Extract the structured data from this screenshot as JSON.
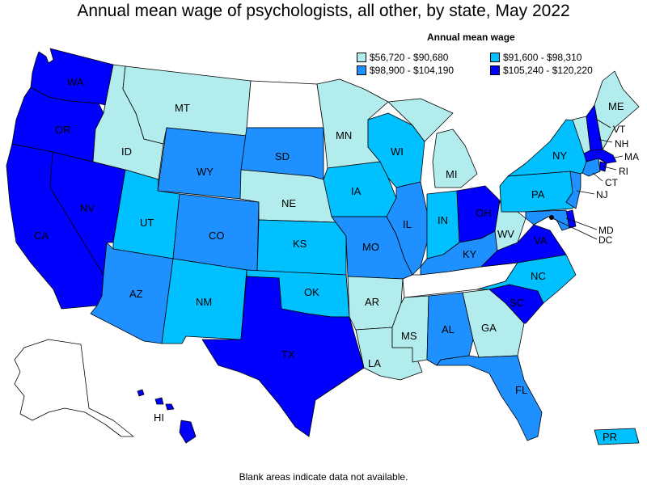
{
  "title": "Annual mean wage of psychologists, all other, by state, May 2022",
  "legend": {
    "title": "Annual mean wage",
    "items": [
      {
        "label": "$56,720 - $90,680",
        "color": "#b3ecec"
      },
      {
        "label": "$91,600 - $98,310",
        "color": "#00c0ff"
      },
      {
        "label": "$98,900 - $104,190",
        "color": "#1e90ff"
      },
      {
        "label": "$105,240 - $120,220",
        "color": "#0000ff"
      }
    ]
  },
  "footnote": "Blank areas indicate data not available.",
  "colors": {
    "no_data": "#ffffff",
    "tier1": "#b3ecec",
    "tier2": "#00c0ff",
    "tier3": "#1e90ff",
    "tier4": "#0000ff"
  },
  "states": [
    {
      "abbr": "WA",
      "tier": 4
    },
    {
      "abbr": "OR",
      "tier": 4
    },
    {
      "abbr": "CA",
      "tier": 4
    },
    {
      "abbr": "NV",
      "tier": 4
    },
    {
      "abbr": "ID",
      "tier": 1
    },
    {
      "abbr": "MT",
      "tier": 1
    },
    {
      "abbr": "WY",
      "tier": 3
    },
    {
      "abbr": "UT",
      "tier": 2
    },
    {
      "abbr": "AZ",
      "tier": 3
    },
    {
      "abbr": "CO",
      "tier": 3
    },
    {
      "abbr": "NM",
      "tier": 2
    },
    {
      "abbr": "ND",
      "tier": 0
    },
    {
      "abbr": "SD",
      "tier": 3
    },
    {
      "abbr": "NE",
      "tier": 1
    },
    {
      "abbr": "KS",
      "tier": 2
    },
    {
      "abbr": "OK",
      "tier": 2
    },
    {
      "abbr": "TX",
      "tier": 4
    },
    {
      "abbr": "MN",
      "tier": 1
    },
    {
      "abbr": "IA",
      "tier": 2
    },
    {
      "abbr": "MO",
      "tier": 3
    },
    {
      "abbr": "AR",
      "tier": 1
    },
    {
      "abbr": "LA",
      "tier": 1
    },
    {
      "abbr": "WI",
      "tier": 2
    },
    {
      "abbr": "IL",
      "tier": 3
    },
    {
      "abbr": "MI",
      "tier": 1
    },
    {
      "abbr": "IN",
      "tier": 2
    },
    {
      "abbr": "OH",
      "tier": 4
    },
    {
      "abbr": "KY",
      "tier": 3
    },
    {
      "abbr": "TN",
      "tier": 0
    },
    {
      "abbr": "MS",
      "tier": 1
    },
    {
      "abbr": "AL",
      "tier": 3
    },
    {
      "abbr": "GA",
      "tier": 1
    },
    {
      "abbr": "FL",
      "tier": 3
    },
    {
      "abbr": "SC",
      "tier": 4
    },
    {
      "abbr": "NC",
      "tier": 2
    },
    {
      "abbr": "VA",
      "tier": 4
    },
    {
      "abbr": "WV",
      "tier": 1
    },
    {
      "abbr": "PA",
      "tier": 2
    },
    {
      "abbr": "NY",
      "tier": 2
    },
    {
      "abbr": "VT",
      "tier": 1
    },
    {
      "abbr": "NH",
      "tier": 4
    },
    {
      "abbr": "ME",
      "tier": 1
    },
    {
      "abbr": "MA",
      "tier": 4
    },
    {
      "abbr": "RI",
      "tier": 4
    },
    {
      "abbr": "CT",
      "tier": 3
    },
    {
      "abbr": "NJ",
      "tier": 3
    },
    {
      "abbr": "DE",
      "tier": 4
    },
    {
      "abbr": "MD",
      "tier": 3
    },
    {
      "abbr": "DC",
      "tier": 0
    },
    {
      "abbr": "AK",
      "tier": 0
    },
    {
      "abbr": "HI",
      "tier": 4
    },
    {
      "abbr": "PR",
      "tier": 2
    }
  ],
  "labels": {
    "WA": "WA",
    "OR": "OR",
    "CA": "CA",
    "NV": "NV",
    "ID": "ID",
    "MT": "MT",
    "WY": "WY",
    "UT": "UT",
    "AZ": "AZ",
    "CO": "CO",
    "NM": "NM",
    "SD": "SD",
    "NE": "NE",
    "KS": "KS",
    "OK": "OK",
    "TX": "TX",
    "MN": "MN",
    "IA": "IA",
    "MO": "MO",
    "AR": "AR",
    "LA": "LA",
    "WI": "WI",
    "IL": "IL",
    "MI": "MI",
    "IN": "IN",
    "OH": "OH",
    "KY": "KY",
    "MS": "MS",
    "AL": "AL",
    "GA": "GA",
    "FL": "FL",
    "SC": "SC",
    "NC": "NC",
    "VA": "VA",
    "WV": "WV",
    "PA": "PA",
    "NY": "NY",
    "VT": "VT",
    "NH": "NH",
    "ME": "ME",
    "MA": "MA",
    "RI": "RI",
    "CT": "CT",
    "NJ": "NJ",
    "MD": "MD",
    "DC": "DC",
    "HI": "HI",
    "PR": "PR"
  }
}
